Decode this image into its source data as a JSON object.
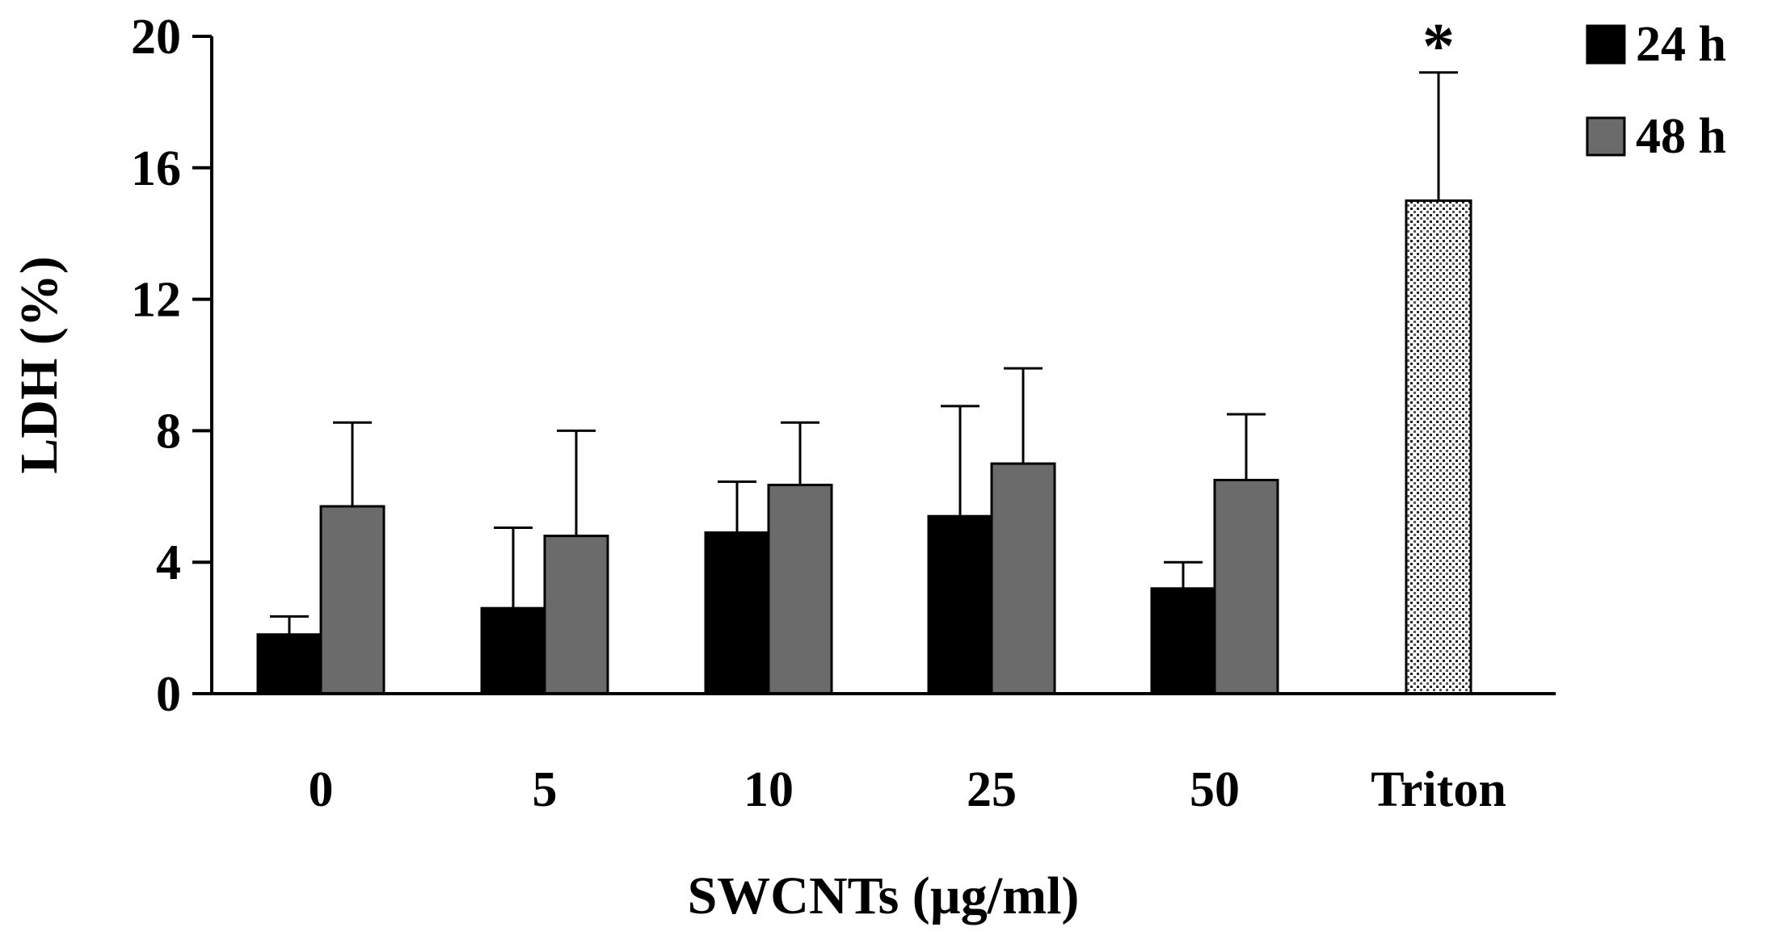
{
  "chart_data": {
    "type": "bar",
    "title": "",
    "xlabel": "SWCNTs (µg/ml)",
    "ylabel": "LDH (%)",
    "ylim": [
      0,
      20
    ],
    "yticks": [
      0,
      4,
      8,
      12,
      16,
      20
    ],
    "ytick_labels": [
      "0",
      "4",
      "8",
      "12",
      "16",
      "20"
    ],
    "categories": [
      "0",
      "5",
      "10",
      "25",
      "50",
      "Triton"
    ],
    "series": [
      {
        "name": "24 h",
        "color": "#000000",
        "values": [
          1.8,
          2.6,
          4.9,
          5.4,
          3.2,
          null
        ],
        "errors": [
          0.55,
          2.45,
          1.55,
          3.35,
          0.8,
          null
        ]
      },
      {
        "name": "48 h",
        "color": "#6b6b6b",
        "values": [
          5.7,
          4.8,
          6.35,
          7.0,
          6.5,
          null
        ],
        "errors": [
          2.55,
          3.2,
          1.9,
          2.9,
          2.0,
          null
        ]
      }
    ],
    "control": {
      "category": "Triton",
      "value": 15.0,
      "error": 3.9,
      "pattern": "dotted",
      "annotation": "*"
    },
    "legend": {
      "position": "top-right",
      "entries": [
        "24 h",
        "48 h"
      ]
    },
    "grid": false
  }
}
